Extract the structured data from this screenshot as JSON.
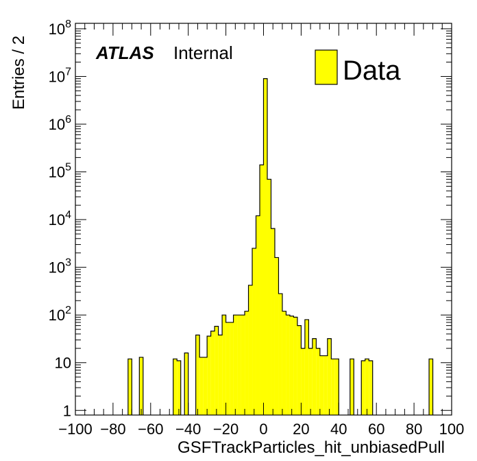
{
  "chart_data": {
    "type": "bar",
    "xlabel": "GSFTrackParticles_hit_unbiasedPull",
    "ylabel": "Entries / 2",
    "x_range": [
      -100,
      100
    ],
    "y_range": [
      0.8,
      130000000
    ],
    "y_scale": "log",
    "bin_width": 2,
    "x_ticks": [
      -100,
      -80,
      -60,
      -40,
      -20,
      0,
      20,
      40,
      60,
      80,
      100
    ],
    "x_tick_labels": [
      "−100",
      "−80",
      "−60",
      "−40",
      "−20",
      "0",
      "20",
      "40",
      "60",
      "80",
      "100"
    ],
    "y_ticks": [
      {
        "value": 1,
        "base": "1",
        "exp": ""
      },
      {
        "value": 10,
        "base": "10",
        "exp": ""
      },
      {
        "value": 100,
        "base": "10",
        "exp": "2"
      },
      {
        "value": 1000,
        "base": "10",
        "exp": "3"
      },
      {
        "value": 10000,
        "base": "10",
        "exp": "4"
      },
      {
        "value": 100000,
        "base": "10",
        "exp": "5"
      },
      {
        "value": 1000000,
        "base": "10",
        "exp": "6"
      },
      {
        "value": 10000000,
        "base": "10",
        "exp": "7"
      },
      {
        "value": 100000000,
        "base": "10",
        "exp": "8"
      }
    ],
    "grid": false,
    "legend_position": "top-right",
    "series": [
      {
        "name": "Data",
        "color": "#ffff00",
        "edge_color": "#000000",
        "bins": [
          {
            "x0": -72,
            "x1": -70,
            "y": 12
          },
          {
            "x0": -66,
            "x1": -64,
            "y": 13
          },
          {
            "x0": -48,
            "x1": -46,
            "y": 12
          },
          {
            "x0": -46,
            "x1": -44,
            "y": 11
          },
          {
            "x0": -42,
            "x1": -40,
            "y": 16
          },
          {
            "x0": -36,
            "x1": -34,
            "y": 38
          },
          {
            "x0": -34,
            "x1": -32,
            "y": 13
          },
          {
            "x0": -32,
            "x1": -30,
            "y": 13
          },
          {
            "x0": -30,
            "x1": -28,
            "y": 36
          },
          {
            "x0": -28,
            "x1": -26,
            "y": 46
          },
          {
            "x0": -26,
            "x1": -24,
            "y": 58
          },
          {
            "x0": -24,
            "x1": -22,
            "y": 38
          },
          {
            "x0": -22,
            "x1": -20,
            "y": 100
          },
          {
            "x0": -20,
            "x1": -18,
            "y": 70
          },
          {
            "x0": -18,
            "x1": -16,
            "y": 70
          },
          {
            "x0": -16,
            "x1": -14,
            "y": 100
          },
          {
            "x0": -14,
            "x1": -12,
            "y": 100
          },
          {
            "x0": -12,
            "x1": -10,
            "y": 100
          },
          {
            "x0": -10,
            "x1": -8,
            "y": 120
          },
          {
            "x0": -8,
            "x1": -6,
            "y": 420
          },
          {
            "x0": -6,
            "x1": -4,
            "y": 2500
          },
          {
            "x0": -4,
            "x1": -2,
            "y": 12000
          },
          {
            "x0": -2,
            "x1": 0,
            "y": 140000
          },
          {
            "x0": 0,
            "x1": 2,
            "y": 9000000
          },
          {
            "x0": 2,
            "x1": 4,
            "y": 70000
          },
          {
            "x0": 4,
            "x1": 6,
            "y": 6500
          },
          {
            "x0": 6,
            "x1": 8,
            "y": 1600
          },
          {
            "x0": 8,
            "x1": 10,
            "y": 280
          },
          {
            "x0": 10,
            "x1": 12,
            "y": 120
          },
          {
            "x0": 12,
            "x1": 14,
            "y": 100
          },
          {
            "x0": 14,
            "x1": 16,
            "y": 95
          },
          {
            "x0": 16,
            "x1": 18,
            "y": 90
          },
          {
            "x0": 18,
            "x1": 20,
            "y": 60
          },
          {
            "x0": 20,
            "x1": 22,
            "y": 20
          },
          {
            "x0": 22,
            "x1": 24,
            "y": 80
          },
          {
            "x0": 24,
            "x1": 26,
            "y": 20
          },
          {
            "x0": 26,
            "x1": 28,
            "y": 32
          },
          {
            "x0": 28,
            "x1": 30,
            "y": 20
          },
          {
            "x0": 30,
            "x1": 32,
            "y": 14
          },
          {
            "x0": 32,
            "x1": 34,
            "y": 14
          },
          {
            "x0": 34,
            "x1": 36,
            "y": 32
          },
          {
            "x0": 36,
            "x1": 38,
            "y": 12
          },
          {
            "x0": 38,
            "x1": 40,
            "y": 12
          },
          {
            "x0": 46,
            "x1": 48,
            "y": 12
          },
          {
            "x0": 52,
            "x1": 54,
            "y": 11
          },
          {
            "x0": 54,
            "x1": 56,
            "y": 12
          },
          {
            "x0": 56,
            "x1": 58,
            "y": 11
          },
          {
            "x0": 88,
            "x1": 90,
            "y": 12
          }
        ]
      }
    ],
    "annotations": [
      {
        "brand": "ATLAS",
        "status": "Internal",
        "position": "top-left"
      }
    ]
  }
}
